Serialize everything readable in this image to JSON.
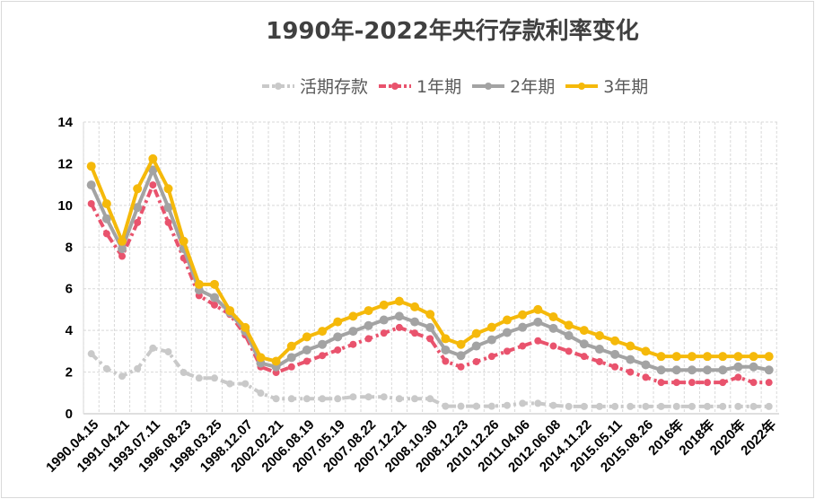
{
  "chart_data": {
    "type": "line",
    "title": "1990年-2022年央行存款利率变化",
    "categories": [
      "1990.04.15",
      "",
      "1991.04.21",
      "",
      "1993.07.11",
      "",
      "1996.08.23",
      "",
      "1998.03.25",
      "",
      "1998.12.07",
      "",
      "2002.02.21",
      "",
      "2006.08.19",
      "",
      "2007.05.19",
      "",
      "2007.08.22",
      "",
      "2007.12.21",
      "",
      "2008.10.30",
      "",
      "2008.12.23",
      "",
      "2010.12.26",
      "",
      "2011.04.06",
      "",
      "2012.06.08",
      "",
      "2014.11.22",
      "",
      "2015.05.11",
      "",
      "2015.08.26",
      "",
      "2016年",
      "",
      "2018年",
      "",
      "2020年",
      "",
      "2022年"
    ],
    "series": [
      {
        "name": "活期存款",
        "color": "#c9c9c9",
        "style": "dash-dot",
        "values": [
          2.88,
          2.16,
          1.8,
          2.16,
          3.15,
          2.97,
          1.98,
          1.71,
          1.71,
          1.44,
          1.44,
          0.99,
          0.72,
          0.72,
          0.72,
          0.72,
          0.72,
          0.81,
          0.81,
          0.81,
          0.72,
          0.72,
          0.72,
          0.36,
          0.36,
          0.36,
          0.36,
          0.4,
          0.5,
          0.5,
          0.4,
          0.35,
          0.35,
          0.35,
          0.35,
          0.35,
          0.35,
          0.35,
          0.35,
          0.35,
          0.35,
          0.35,
          0.35,
          0.35,
          0.35
        ]
      },
      {
        "name": "1年期",
        "color": "#e9536d",
        "style": "dash-dot",
        "values": [
          10.08,
          8.64,
          7.56,
          9.18,
          10.98,
          9.18,
          7.47,
          5.67,
          5.22,
          4.77,
          3.78,
          2.25,
          1.98,
          2.25,
          2.52,
          2.79,
          3.06,
          3.33,
          3.6,
          3.87,
          4.14,
          3.87,
          3.6,
          2.52,
          2.25,
          2.5,
          2.75,
          3.0,
          3.25,
          3.5,
          3.25,
          3.0,
          2.75,
          2.5,
          2.25,
          2.0,
          1.75,
          1.5,
          1.5,
          1.5,
          1.5,
          1.5,
          1.75,
          1.5,
          1.5
        ]
      },
      {
        "name": "2年期",
        "color": "#a3a3a3",
        "style": "solid",
        "values": [
          10.98,
          9.36,
          7.92,
          9.9,
          11.7,
          9.9,
          7.92,
          5.94,
          5.58,
          4.86,
          3.96,
          2.43,
          2.25,
          2.7,
          3.06,
          3.33,
          3.69,
          3.96,
          4.23,
          4.5,
          4.68,
          4.41,
          4.14,
          3.06,
          2.79,
          3.25,
          3.55,
          3.9,
          4.15,
          4.4,
          4.1,
          3.75,
          3.35,
          3.1,
          2.85,
          2.6,
          2.35,
          2.1,
          2.1,
          2.1,
          2.1,
          2.1,
          2.25,
          2.25,
          2.1
        ]
      },
      {
        "name": "3年期",
        "color": "#f5b90a",
        "style": "solid",
        "values": [
          11.88,
          10.08,
          8.28,
          10.8,
          12.24,
          10.8,
          8.28,
          6.21,
          6.21,
          4.95,
          4.14,
          2.7,
          2.52,
          3.24,
          3.69,
          3.96,
          4.41,
          4.68,
          4.95,
          5.22,
          5.4,
          5.13,
          4.77,
          3.6,
          3.33,
          3.85,
          4.15,
          4.5,
          4.75,
          5.0,
          4.65,
          4.25,
          4.0,
          3.75,
          3.5,
          3.25,
          3.0,
          2.75,
          2.75,
          2.75,
          2.75,
          2.75,
          2.75,
          2.75,
          2.75
        ]
      }
    ],
    "yticks": [
      "0",
      "2",
      "4",
      "6",
      "8",
      "10",
      "12",
      "14"
    ],
    "ylim": [
      0,
      14
    ],
    "grid": true,
    "legend": "top"
  }
}
